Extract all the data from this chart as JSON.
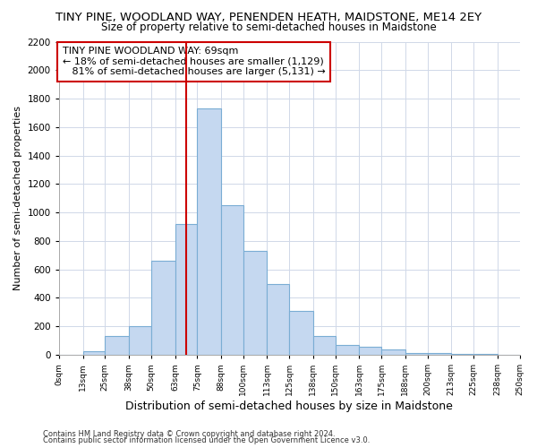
{
  "title1": "TINY PINE, WOODLAND WAY, PENENDEN HEATH, MAIDSTONE, ME14 2EY",
  "title2": "Size of property relative to semi-detached houses in Maidstone",
  "xlabel": "Distribution of semi-detached houses by size in Maidstone",
  "ylabel": "Number of semi-detached properties",
  "footnote1": "Contains HM Land Registry data © Crown copyright and database right 2024.",
  "footnote2": "Contains public sector information licensed under the Open Government Licence v3.0.",
  "bar_edges": [
    0,
    13,
    25,
    38,
    50,
    63,
    75,
    88,
    100,
    113,
    125,
    138,
    150,
    163,
    175,
    188,
    200,
    213,
    225,
    238,
    250
  ],
  "bar_heights": [
    0,
    25,
    130,
    200,
    660,
    920,
    1730,
    1050,
    730,
    500,
    310,
    130,
    70,
    55,
    40,
    15,
    15,
    5,
    5,
    0
  ],
  "bar_color": "#c5d8f0",
  "bar_edge_color": "#7aadd4",
  "vline_x": 69,
  "vline_color": "#cc0000",
  "annotation_title": "TINY PINE WOODLAND WAY: 69sqm",
  "annotation_line1": "← 18% of semi-detached houses are smaller (1,129)",
  "annotation_line2": "   81% of semi-detached houses are larger (5,131) →",
  "annotation_box_color": "#cc0000",
  "ylim": [
    0,
    2200
  ],
  "yticks": [
    0,
    200,
    400,
    600,
    800,
    1000,
    1200,
    1400,
    1600,
    1800,
    2000,
    2200
  ],
  "tick_labels": [
    "0sqm",
    "13sqm",
    "25sqm",
    "38sqm",
    "50sqm",
    "63sqm",
    "75sqm",
    "88sqm",
    "100sqm",
    "113sqm",
    "125sqm",
    "138sqm",
    "150sqm",
    "163sqm",
    "175sqm",
    "188sqm",
    "200sqm",
    "213sqm",
    "225sqm",
    "238sqm",
    "250sqm"
  ],
  "background_color": "#ffffff",
  "grid_color": "#d0d8e8",
  "title1_fontsize": 9.5,
  "title2_fontsize": 8.5,
  "ylabel_fontsize": 8,
  "xlabel_fontsize": 9,
  "annotation_fontsize": 8,
  "footnote_fontsize": 6
}
